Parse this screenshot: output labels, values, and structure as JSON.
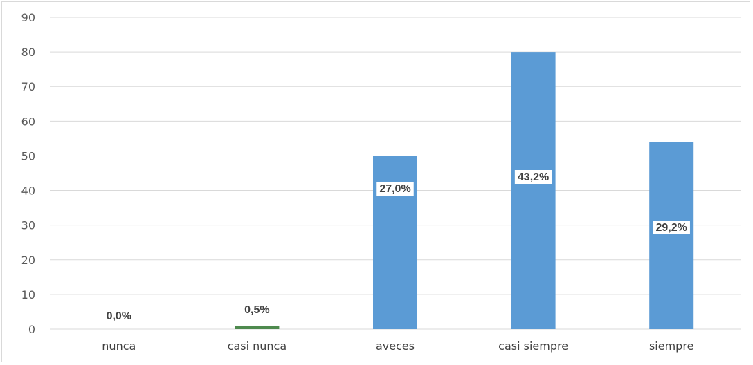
{
  "chart_data": {
    "type": "bar",
    "title": "",
    "xlabel": "",
    "ylabel": "",
    "ylim": [
      0,
      90
    ],
    "yticks": [
      0,
      10,
      20,
      30,
      40,
      50,
      60,
      70,
      80,
      90
    ],
    "grid": true,
    "legend": "none",
    "categories": [
      "nunca",
      "casi nunca",
      "aveces",
      "casi siempre",
      "siempre"
    ],
    "values": [
      0,
      1,
      50,
      80,
      54
    ],
    "data_labels": [
      "0,0%",
      "0,5%",
      "27,0%",
      "43,2%",
      "29,2%"
    ],
    "bar_colors": [
      "#5b9bd5",
      "#4e8a4e",
      "#5b9bd5",
      "#5b9bd5",
      "#5b9bd5"
    ],
    "gridline_color": "#d9d9d9"
  }
}
